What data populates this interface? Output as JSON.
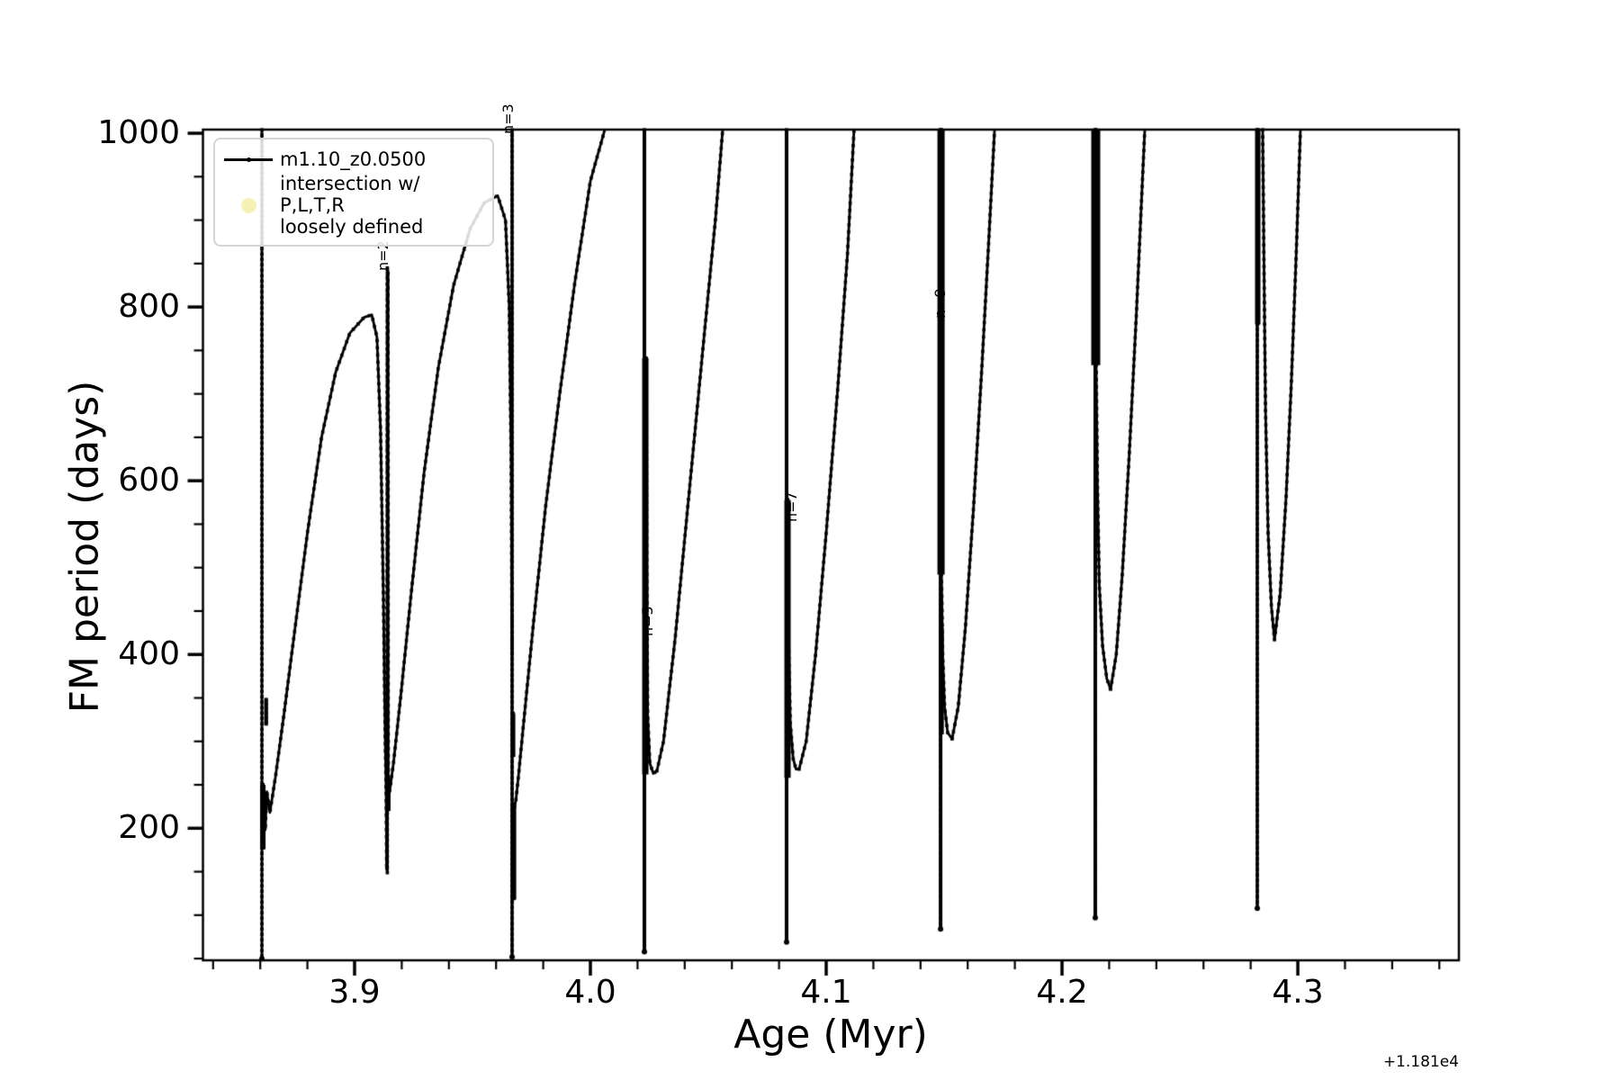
{
  "figure": {
    "background": "#ffffff"
  },
  "legend": {
    "position": "upper left",
    "items": [
      {
        "label": "m1.10_z0.0500",
        "marker": "line-with-dot",
        "color": "#000000"
      },
      {
        "label": "intersection w/ P,L,T,R\nloosely defined",
        "marker": "circle",
        "color": "#f6f2b6"
      }
    ]
  },
  "chart_data": {
    "type": "line",
    "title": "",
    "xlabel": "Age (Myr)",
    "ylabel": "FM period (days)",
    "x_offset_text": "+1.181e4",
    "xlim": [
      3.8357,
      4.3683
    ],
    "ylim": [
      48,
      1004.2
    ],
    "xticks": [
      3.9,
      4.0,
      4.1,
      4.2,
      4.3
    ],
    "xtick_labels": [
      "3.9",
      "4.0",
      "4.1",
      "4.2",
      "4.3"
    ],
    "x_minor_step": 0.02,
    "yticks": [
      200,
      400,
      600,
      800,
      1000
    ],
    "ytick_labels": [
      "200",
      "400",
      "600",
      "800",
      "1000"
    ],
    "y_minor_step": 50,
    "grid": false,
    "line_color": "#000000",
    "marker": "point",
    "annotations": [
      {
        "text": "n=2",
        "age": 3.9145,
        "period": 842
      },
      {
        "text": "n=3",
        "age": 3.9676,
        "period": 999
      },
      {
        "text": "n=5",
        "age": 4.0267,
        "period": 421
      },
      {
        "text": "n=7",
        "age": 4.0878,
        "period": 552
      },
      {
        "text": "n=9",
        "age": 4.1508,
        "period": 787
      }
    ],
    "series": [
      {
        "name": "m1.10_z0.0500",
        "needles": [
          {
            "x": 3.8607,
            "segs": [
              {
                "from": 1004,
                "to": 52,
                "w": 3
              },
              {
                "from": 250,
                "to": 176,
                "w": 6,
                "dx": 0.0004
              },
              {
                "from": 348,
                "to": 318,
                "w": 4,
                "dx": 0.0018
              }
            ]
          },
          {
            "x": 3.9139,
            "segs": [
              {
                "from": 845,
                "to": 148,
                "w": 3
              },
              {
                "from": 258,
                "to": 220,
                "w": 6,
                "dx": 0.0002
              }
            ]
          },
          {
            "x": 3.9668,
            "segs": [
              {
                "from": 1004,
                "to": 54,
                "w": 3.5
              },
              {
                "from": 332,
                "to": 282,
                "w": 5,
                "dx": 0.0004
              },
              {
                "from": 228,
                "to": 118,
                "w": 6,
                "dx": 0.0006
              }
            ]
          },
          {
            "x": 4.0229,
            "segs": [
              {
                "from": 1004,
                "to": 60,
                "w": 4
              },
              {
                "from": 741,
                "to": 262,
                "w": 7,
                "dx": 0.0004
              }
            ]
          },
          {
            "x": 4.0832,
            "segs": [
              {
                "from": 1004,
                "to": 71,
                "w": 4
              },
              {
                "from": 578,
                "to": 258,
                "w": 7,
                "dx": 0.0004
              }
            ]
          },
          {
            "x": 4.1485,
            "segs": [
              {
                "from": 1004,
                "to": 86,
                "w": 4
              },
              {
                "from": 1004,
                "to": 492,
                "w": 8,
                "dx": 0.0002
              },
              {
                "from": 430,
                "to": 308,
                "w": 5,
                "dx": 0.0004
              }
            ]
          },
          {
            "x": 4.2141,
            "segs": [
              {
                "from": 1004,
                "to": 99,
                "w": 4
              },
              {
                "from": 1004,
                "to": 733,
                "w": 10,
                "dx": 0.0002
              }
            ]
          },
          {
            "x": 4.2828,
            "segs": [
              {
                "from": 1004,
                "to": 110,
                "w": 3.5
              },
              {
                "from": 1004,
                "to": 780,
                "w": 6,
                "dx": 0.0002
              }
            ]
          }
        ],
        "branches": [
          [
            [
              3.8611,
              192
            ],
            [
              3.8616,
              238
            ],
            [
              3.8621,
              198
            ],
            [
              3.8628,
              242
            ],
            [
              3.8641,
              218
            ],
            [
              3.8665,
              260
            ],
            [
              3.87,
              330
            ],
            [
              3.8745,
              425
            ],
            [
              3.88,
              540
            ],
            [
              3.886,
              650
            ],
            [
              3.892,
              725
            ],
            [
              3.898,
              770
            ],
            [
              3.904,
              788
            ],
            [
              3.9073,
              791
            ],
            [
              3.9095,
              765
            ],
            [
              3.911,
              660
            ],
            [
              3.9122,
              470
            ],
            [
              3.913,
              300
            ],
            [
              3.9134,
              240
            ]
          ],
          [
            [
              3.9134,
              240
            ],
            [
              3.9136,
              152
            ],
            [
              3.9138,
              158
            ],
            [
              3.9139,
              845
            ],
            [
              3.9142,
              840
            ],
            [
              3.9143,
              235
            ]
          ],
          [
            [
              3.9143,
              235
            ],
            [
              3.915,
              245
            ],
            [
              3.9165,
              275
            ],
            [
              3.9195,
              350
            ],
            [
              3.924,
              470
            ],
            [
              3.9295,
              610
            ],
            [
              3.9355,
              730
            ],
            [
              3.942,
              825
            ],
            [
              3.949,
              890
            ],
            [
              3.955,
              920
            ],
            [
              3.9607,
              928
            ],
            [
              3.964,
              900
            ],
            [
              3.9656,
              800
            ],
            [
              3.9664,
              620
            ],
            [
              3.9668,
              400
            ]
          ],
          [
            [
              3.9678,
              225
            ],
            [
              3.9684,
              232
            ],
            [
              3.9695,
              260
            ],
            [
              3.972,
              330
            ],
            [
              3.976,
              440
            ],
            [
              3.981,
              570
            ],
            [
              3.987,
              700
            ],
            [
              3.9935,
              830
            ],
            [
              4.0,
              945
            ],
            [
              4.0061,
              1004
            ]
          ],
          [
            [
              4.0237,
              741
            ],
            [
              4.0239,
              500
            ],
            [
              4.0243,
              330
            ],
            [
              4.0252,
              275
            ],
            [
              4.0267,
              263
            ],
            [
              4.0282,
              266
            ]
          ],
          [
            [
              4.0282,
              266
            ],
            [
              4.031,
              300
            ],
            [
              4.036,
              420
            ],
            [
              4.042,
              590
            ],
            [
              4.048,
              760
            ],
            [
              4.053,
              900
            ],
            [
              4.0561,
              1004
            ]
          ],
          [
            [
              4.0836,
              578
            ],
            [
              4.084,
              420
            ],
            [
              4.0848,
              320
            ],
            [
              4.086,
              280
            ],
            [
              4.0872,
              268
            ],
            [
              4.0885,
              268
            ]
          ],
          [
            [
              4.0885,
              268
            ],
            [
              4.0915,
              300
            ],
            [
              4.0955,
              400
            ],
            [
              4.1,
              540
            ],
            [
              4.105,
              710
            ],
            [
              4.109,
              860
            ],
            [
              4.1118,
              1004
            ]
          ],
          [
            [
              4.1489,
              492
            ],
            [
              4.1494,
              400
            ],
            [
              4.1502,
              340
            ],
            [
              4.1515,
              310
            ],
            [
              4.1534,
              303
            ]
          ],
          [
            [
              4.1534,
              303
            ],
            [
              4.156,
              340
            ],
            [
              4.159,
              430
            ],
            [
              4.1625,
              570
            ],
            [
              4.166,
              730
            ],
            [
              4.169,
              880
            ],
            [
              4.1714,
              1004
            ]
          ],
          [
            [
              4.2145,
              733
            ],
            [
              4.215,
              600
            ],
            [
              4.2158,
              480
            ],
            [
              4.2172,
              410
            ],
            [
              4.219,
              372
            ],
            [
              4.2206,
              360
            ]
          ],
          [
            [
              4.2206,
              360
            ],
            [
              4.223,
              400
            ],
            [
              4.2255,
              490
            ],
            [
              4.2285,
              630
            ],
            [
              4.2315,
              790
            ],
            [
              4.234,
              940
            ],
            [
              4.2351,
              1004
            ]
          ],
          [
            [
              4.2851,
              1004
            ],
            [
              4.2856,
              860
            ],
            [
              4.2863,
              680
            ],
            [
              4.2874,
              540
            ],
            [
              4.2888,
              455
            ],
            [
              4.2901,
              417
            ]
          ],
          [
            [
              4.2901,
              417
            ],
            [
              4.2925,
              470
            ],
            [
              4.295,
              580
            ],
            [
              4.2972,
              710
            ],
            [
              4.2993,
              860
            ],
            [
              4.3011,
              1004
            ]
          ]
        ],
        "endpoints": [
          [
            3.8607,
            52
          ],
          [
            3.9668,
            54
          ],
          [
            4.0229,
            60
          ],
          [
            4.0832,
            71
          ],
          [
            4.1485,
            86
          ],
          [
            4.2141,
            99
          ],
          [
            4.2828,
            110
          ]
        ]
      }
    ]
  }
}
